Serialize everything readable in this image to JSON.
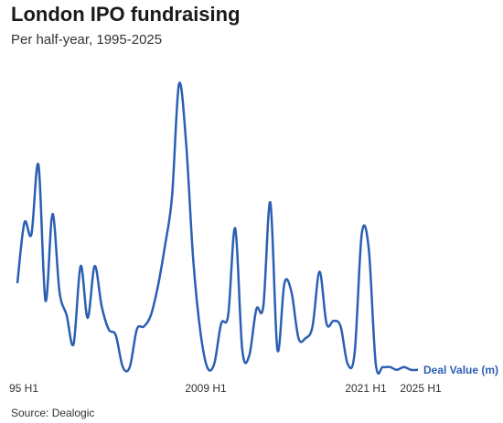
{
  "title": "London IPO fundraising",
  "subtitle": "Per half-year, 1995-2025",
  "source": "Source: Dealogic",
  "chart_data": {
    "type": "line",
    "x_tick_labels": [
      "95 H1",
      "2009 H1",
      "2021 H1",
      "2025 H1"
    ],
    "series": [
      {
        "name": "Deal Value (m)",
        "color": "#2b5fb3",
        "values": [
          0.31,
          0.52,
          0.48,
          0.72,
          0.25,
          0.55,
          0.28,
          0.2,
          0.1,
          0.37,
          0.19,
          0.37,
          0.23,
          0.15,
          0.13,
          0.02,
          0.02,
          0.15,
          0.16,
          0.2,
          0.3,
          0.44,
          0.61,
          1.0,
          0.8,
          0.4,
          0.15,
          0.02,
          0.03,
          0.17,
          0.2,
          0.5,
          0.08,
          0.06,
          0.22,
          0.23,
          0.59,
          0.08,
          0.31,
          0.28,
          0.12,
          0.12,
          0.16,
          0.35,
          0.17,
          0.18,
          0.16,
          0.03,
          0.07,
          0.48,
          0.43,
          0.03,
          0.02,
          0.02,
          0.01,
          0.02,
          0.01,
          0.01
        ]
      }
    ]
  }
}
